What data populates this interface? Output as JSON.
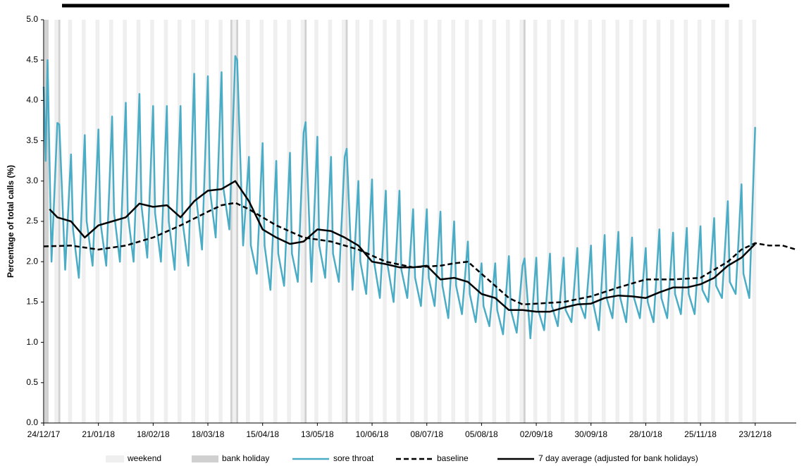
{
  "chart_data": {
    "type": "line",
    "ylabel": "Percentage of total calls (%)",
    "shading_labels": [
      "weekend",
      "bank holiday"
    ],
    "shading_colors": [
      "#efefef",
      "#d0d0d0"
    ],
    "bank_holidays": [
      "25/12/17",
      "26/12/17",
      "01/01/18",
      "30/03/18",
      "02/04/18",
      "07/05/18",
      "28/05/18",
      "27/08/18"
    ],
    "xlim": [
      "24/12/17",
      "13/01/19"
    ],
    "xticks": [
      "24/12/17",
      "21/01/18",
      "18/02/18",
      "18/03/18",
      "15/04/18",
      "13/05/18",
      "10/06/18",
      "08/07/18",
      "05/08/18",
      "02/09/18",
      "30/09/18",
      "28/10/18",
      "25/11/18",
      "23/12/18"
    ],
    "ylim": [
      0,
      5
    ],
    "yticks": [
      {
        "value": 0,
        "label": "0.0"
      },
      {
        "value": 0.5,
        "label": "0.5"
      },
      {
        "value": 1,
        "label": "1.0"
      },
      {
        "value": 1.5,
        "label": "1.5"
      },
      {
        "value": 2,
        "label": "2.0"
      },
      {
        "value": 2.5,
        "label": "2.5"
      },
      {
        "value": 3,
        "label": "3.0"
      },
      {
        "value": 3.5,
        "label": "3.5"
      },
      {
        "value": 4,
        "label": "4.0"
      },
      {
        "value": 4.5,
        "label": "4.5"
      },
      {
        "value": 5,
        "label": "5.0"
      }
    ],
    "series": [
      {
        "name": "sore throat",
        "color": "#4bacc6",
        "dash": "none",
        "x": [
          "24/12/17",
          "25/12/17",
          "26/12/17",
          "28/12/17",
          "31/12/17",
          "01/01/18",
          "04/01/18",
          "07/01/18",
          "08/01/18",
          "11/01/18",
          "14/01/18",
          "15/01/18",
          "18/01/18",
          "21/01/18",
          "22/01/18",
          "25/01/18",
          "28/01/18",
          "29/01/18",
          "01/02/18",
          "04/02/18",
          "05/02/18",
          "08/02/18",
          "11/02/18",
          "12/02/18",
          "15/02/18",
          "18/02/18",
          "19/02/18",
          "22/02/18",
          "25/02/18",
          "26/02/18",
          "01/03/18",
          "04/03/18",
          "05/03/18",
          "08/03/18",
          "11/03/18",
          "12/03/18",
          "15/03/18",
          "18/03/18",
          "19/03/18",
          "22/03/18",
          "25/03/18",
          "26/03/18",
          "29/03/18",
          "01/04/18",
          "02/04/18",
          "05/04/18",
          "08/04/18",
          "09/04/18",
          "12/04/18",
          "15/04/18",
          "16/04/18",
          "19/04/18",
          "22/04/18",
          "23/04/18",
          "26/04/18",
          "29/04/18",
          "30/04/18",
          "03/05/18",
          "06/05/18",
          "07/05/18",
          "10/05/18",
          "13/05/18",
          "14/05/18",
          "17/05/18",
          "20/05/18",
          "21/05/18",
          "24/05/18",
          "27/05/18",
          "28/05/18",
          "31/05/18",
          "03/06/18",
          "04/06/18",
          "07/06/18",
          "10/06/18",
          "11/06/18",
          "14/06/18",
          "17/06/18",
          "18/06/18",
          "21/06/18",
          "24/06/18",
          "25/06/18",
          "28/06/18",
          "01/07/18",
          "02/07/18",
          "05/07/18",
          "08/07/18",
          "09/07/18",
          "12/07/18",
          "15/07/18",
          "16/07/18",
          "19/07/18",
          "22/07/18",
          "23/07/18",
          "26/07/18",
          "29/07/18",
          "30/07/18",
          "02/08/18",
          "05/08/18",
          "06/08/18",
          "09/08/18",
          "12/08/18",
          "13/08/18",
          "16/08/18",
          "19/08/18",
          "20/08/18",
          "23/08/18",
          "26/08/18",
          "27/08/18",
          "30/08/18",
          "02/09/18",
          "03/09/18",
          "06/09/18",
          "09/09/18",
          "10/09/18",
          "13/09/18",
          "16/09/18",
          "17/09/18",
          "20/09/18",
          "23/09/18",
          "24/09/18",
          "27/09/18",
          "30/09/18",
          "01/10/18",
          "04/10/18",
          "07/10/18",
          "08/10/18",
          "11/10/18",
          "14/10/18",
          "15/10/18",
          "18/10/18",
          "21/10/18",
          "22/10/18",
          "25/10/18",
          "28/10/18",
          "29/10/18",
          "01/11/18",
          "04/11/18",
          "05/11/18",
          "08/11/18",
          "11/11/18",
          "12/11/18",
          "15/11/18",
          "18/11/18",
          "19/11/18",
          "22/11/18",
          "25/11/18",
          "26/11/18",
          "29/11/18",
          "02/12/18",
          "03/12/18",
          "06/12/18",
          "09/12/18",
          "10/12/18",
          "13/12/18",
          "16/12/18",
          "17/12/18",
          "20/12/18",
          "23/12/18"
        ],
        "values": [
          4.17,
          3.25,
          4.5,
          2.0,
          3.72,
          3.7,
          1.9,
          3.33,
          2.4,
          1.8,
          3.57,
          2.5,
          1.95,
          3.64,
          2.5,
          1.95,
          3.8,
          2.6,
          2.0,
          3.97,
          2.6,
          2.0,
          4.08,
          2.7,
          2.05,
          3.93,
          2.6,
          2.0,
          3.93,
          2.5,
          1.9,
          3.93,
          2.5,
          1.95,
          4.33,
          2.8,
          2.15,
          4.3,
          2.9,
          2.3,
          4.35,
          2.9,
          2.4,
          4.55,
          4.5,
          2.2,
          3.3,
          2.2,
          1.85,
          3.47,
          2.2,
          1.65,
          3.25,
          2.1,
          1.7,
          3.35,
          2.1,
          1.75,
          3.6,
          3.73,
          1.75,
          3.55,
          2.2,
          1.8,
          3.3,
          2.1,
          1.75,
          3.3,
          3.4,
          1.65,
          3.0,
          2.0,
          1.6,
          3.02,
          2.0,
          1.55,
          2.88,
          1.95,
          1.5,
          2.88,
          1.9,
          1.55,
          2.65,
          1.8,
          1.45,
          2.65,
          1.8,
          1.45,
          2.62,
          1.7,
          1.3,
          2.5,
          1.7,
          1.35,
          2.25,
          1.6,
          1.25,
          1.98,
          1.45,
          1.2,
          1.98,
          1.4,
          1.1,
          2.07,
          1.4,
          1.12,
          1.95,
          2.04,
          1.05,
          2.05,
          1.4,
          1.15,
          2.1,
          1.45,
          1.2,
          2.05,
          1.4,
          1.25,
          2.17,
          1.5,
          1.3,
          2.2,
          1.5,
          1.15,
          2.33,
          1.55,
          1.3,
          2.37,
          1.55,
          1.25,
          2.3,
          1.55,
          1.3,
          2.17,
          1.5,
          1.25,
          2.4,
          1.55,
          1.3,
          2.36,
          1.6,
          1.35,
          2.42,
          1.6,
          1.35,
          2.44,
          1.65,
          1.5,
          2.54,
          1.7,
          1.55,
          2.75,
          1.75,
          1.6,
          2.96,
          1.85,
          1.55,
          3.67
        ]
      },
      {
        "name": "baseline",
        "color": "#000000",
        "dash": "dashed",
        "x": [
          "24/12/17",
          "07/01/18",
          "21/01/18",
          "04/02/18",
          "18/02/18",
          "04/03/18",
          "18/03/18",
          "25/03/18",
          "01/04/18",
          "08/04/18",
          "22/04/18",
          "06/05/18",
          "20/05/18",
          "03/06/18",
          "17/06/18",
          "01/07/18",
          "15/07/18",
          "22/07/18",
          "29/07/18",
          "05/08/18",
          "12/08/18",
          "19/08/18",
          "26/08/18",
          "02/09/18",
          "16/09/18",
          "30/09/18",
          "14/10/18",
          "28/10/18",
          "11/11/18",
          "25/11/18",
          "09/12/18",
          "16/12/18",
          "23/12/18",
          "30/12/18",
          "06/01/19",
          "13/01/19"
        ],
        "values": [
          2.19,
          2.2,
          2.15,
          2.2,
          2.3,
          2.45,
          2.62,
          2.7,
          2.73,
          2.65,
          2.45,
          2.3,
          2.25,
          2.15,
          2.0,
          1.93,
          1.95,
          1.98,
          2.0,
          1.85,
          1.7,
          1.55,
          1.47,
          1.48,
          1.5,
          1.57,
          1.68,
          1.78,
          1.78,
          1.8,
          2.0,
          2.15,
          2.23,
          2.2,
          2.2,
          2.15
        ]
      },
      {
        "name": "7 day average (adjusted for bank holidays)",
        "color": "#000000",
        "dash": "solid",
        "x": [
          "27/12/17",
          "31/12/17",
          "07/01/18",
          "14/01/18",
          "21/01/18",
          "28/01/18",
          "04/02/18",
          "11/02/18",
          "18/02/18",
          "25/02/18",
          "04/03/18",
          "11/03/18",
          "18/03/18",
          "25/03/18",
          "01/04/18",
          "08/04/18",
          "15/04/18",
          "22/04/18",
          "29/04/18",
          "06/05/18",
          "13/05/18",
          "20/05/18",
          "27/05/18",
          "03/06/18",
          "10/06/18",
          "17/06/18",
          "24/06/18",
          "01/07/18",
          "08/07/18",
          "15/07/18",
          "22/07/18",
          "29/07/18",
          "05/08/18",
          "12/08/18",
          "19/08/18",
          "26/08/18",
          "02/09/18",
          "09/09/18",
          "16/09/18",
          "23/09/18",
          "30/09/18",
          "07/10/18",
          "14/10/18",
          "21/10/18",
          "28/10/18",
          "04/11/18",
          "11/11/18",
          "18/11/18",
          "25/11/18",
          "02/12/18",
          "09/12/18",
          "16/12/18",
          "23/12/18"
        ],
        "values": [
          2.65,
          2.55,
          2.5,
          2.3,
          2.45,
          2.5,
          2.55,
          2.72,
          2.68,
          2.7,
          2.55,
          2.75,
          2.88,
          2.9,
          3.0,
          2.75,
          2.4,
          2.3,
          2.22,
          2.25,
          2.4,
          2.38,
          2.3,
          2.2,
          2.0,
          1.97,
          1.93,
          1.93,
          1.95,
          1.78,
          1.8,
          1.75,
          1.6,
          1.55,
          1.4,
          1.4,
          1.38,
          1.38,
          1.43,
          1.47,
          1.48,
          1.55,
          1.58,
          1.57,
          1.55,
          1.62,
          1.68,
          1.68,
          1.72,
          1.8,
          1.95,
          2.05,
          2.22
        ]
      }
    ]
  }
}
